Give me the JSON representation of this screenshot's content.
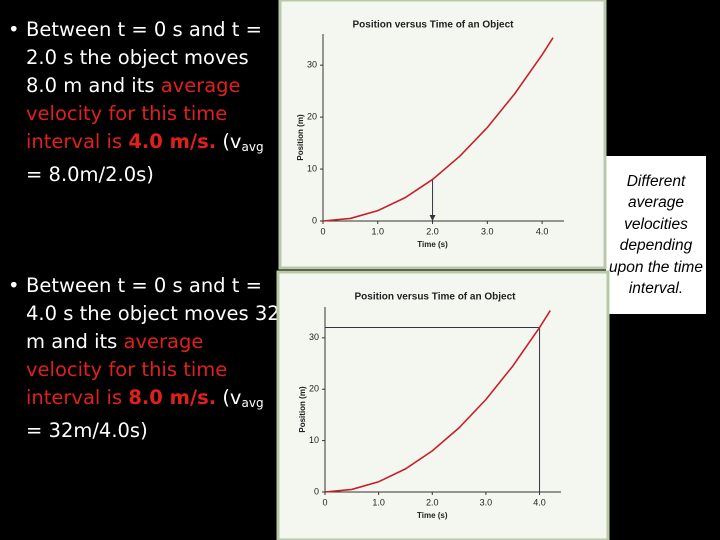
{
  "bullets": [
    {
      "parts": [
        {
          "text": "Between t = 0 s and t = 2.0 s the object moves 8.0 m and its ",
          "style": "normal"
        },
        {
          "text": "average velocity for this time interval is ",
          "style": "red"
        },
        {
          "text": "4.0 m/s.",
          "style": "bold-red"
        },
        {
          "text": " (v",
          "style": "normal"
        },
        {
          "text": "avg",
          "style": "sub"
        },
        {
          "text": " = 8.0m/2.0s)",
          "style": "normal"
        }
      ]
    },
    {
      "parts": [
        {
          "text": "Between t = 0 s and t = 4.0 s the object moves 32 m and its ",
          "style": "normal"
        },
        {
          "text": "average velocity for this time interval is ",
          "style": "red"
        },
        {
          "text": "8.0 m/s.",
          "style": "bold-red"
        },
        {
          "text": " (v",
          "style": "normal"
        },
        {
          "text": "avg",
          "style": "sub"
        },
        {
          "text": " = 32m/4.0s)",
          "style": "normal"
        }
      ]
    }
  ],
  "callout": "Different average velocities depending upon the time interval.",
  "chart_data": [
    {
      "type": "line",
      "title": "Position versus Time of an Object",
      "x_label": "Time (s)",
      "y_label": "Position (m)",
      "x": [
        0,
        0.5,
        1,
        1.5,
        2,
        2.5,
        3,
        3.5,
        4,
        4.2
      ],
      "series": [
        {
          "name": "Position",
          "color": "#c8202a",
          "values": [
            0,
            0.5,
            2,
            4.5,
            8,
            12.5,
            18,
            24.5,
            32,
            35.3
          ]
        }
      ],
      "xlim": [
        0,
        4.4
      ],
      "ylim": [
        0,
        36
      ],
      "xticks": [
        0,
        {
          "value": 1,
          "label": "1.0"
        },
        {
          "value": 2,
          "label": "2.0"
        },
        {
          "value": 3,
          "label": "3.0"
        },
        {
          "value": 4,
          "label": "4.0"
        }
      ],
      "yticks": [
        0,
        10,
        20,
        30
      ],
      "marker": {
        "x": 2,
        "y": 8,
        "horizontal": false
      }
    },
    {
      "type": "line",
      "title": "Position versus Time of an Object",
      "x_label": "Time (s)",
      "y_label": "Position (m)",
      "x": [
        0,
        0.5,
        1,
        1.5,
        2,
        2.5,
        3,
        3.5,
        4,
        4.2
      ],
      "series": [
        {
          "name": "Position",
          "color": "#c8202a",
          "values": [
            0,
            0.5,
            2,
            4.5,
            8,
            12.5,
            18,
            24.5,
            32,
            35.3
          ]
        }
      ],
      "xlim": [
        0,
        4.4
      ],
      "ylim": [
        0,
        36
      ],
      "xticks": [
        0,
        {
          "value": 1,
          "label": "1.0"
        },
        {
          "value": 2,
          "label": "2.0"
        },
        {
          "value": 3,
          "label": "3.0"
        },
        {
          "value": 4,
          "label": "4.0"
        }
      ],
      "yticks": [
        0,
        10,
        20,
        30
      ],
      "marker": {
        "x": 4,
        "y": 32,
        "horizontal": true
      }
    }
  ]
}
